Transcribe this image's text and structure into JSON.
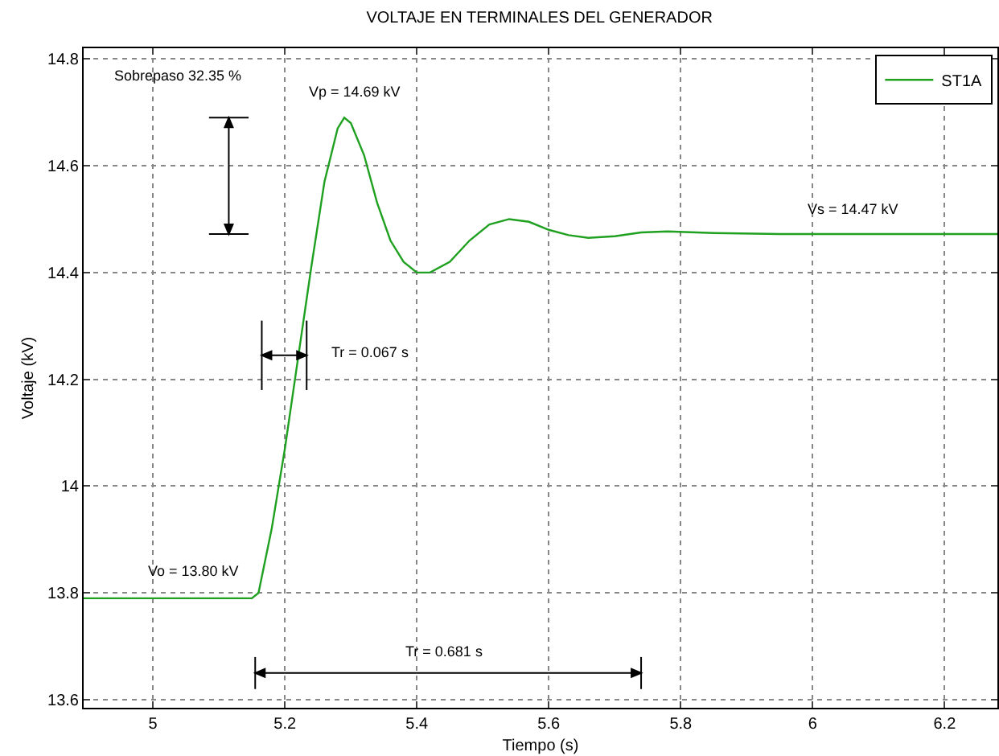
{
  "chart_data": {
    "type": "line",
    "title": "VOLTAJE EN TERMINALES DEL GENERADOR",
    "xlabel": "Tiempo (s)",
    "ylabel": "Voltaje (kV)",
    "xlim": [
      4.895,
      6.28
    ],
    "xticks": [
      5,
      5.2,
      5.4,
      5.6,
      5.8,
      6,
      6.2
    ],
    "ylim": [
      13.585,
      14.82
    ],
    "yticks": [
      13.6,
      13.8,
      14,
      14.2,
      14.4,
      14.6,
      14.8
    ],
    "grid": true,
    "legend": "top right",
    "marker": "none",
    "line_style": "solid",
    "series": [
      {
        "name": "ST1A",
        "color": "#20a020",
        "x": [
          4.895,
          5.15,
          5.16,
          5.18,
          5.2,
          5.22,
          5.24,
          5.26,
          5.28,
          5.29,
          5.3,
          5.32,
          5.34,
          5.36,
          5.38,
          5.4,
          5.42,
          5.45,
          5.48,
          5.51,
          5.54,
          5.57,
          5.6,
          5.63,
          5.66,
          5.7,
          5.74,
          5.78,
          5.85,
          5.95,
          6.1,
          6.28
        ],
        "values": [
          13.79,
          13.79,
          13.8,
          13.92,
          14.07,
          14.24,
          14.41,
          14.57,
          14.67,
          14.69,
          14.68,
          14.62,
          14.53,
          14.46,
          14.42,
          14.4,
          14.4,
          14.42,
          14.46,
          14.49,
          14.5,
          14.495,
          14.48,
          14.47,
          14.465,
          14.468,
          14.475,
          14.477,
          14.474,
          14.472,
          14.472,
          14.472
        ]
      }
    ],
    "annotations": [
      "Sobrepaso 32.35 %",
      "Vp = 14.69 kV",
      "Vs = 14.47 kV",
      "Tr = 0.067 s",
      "Vo = 13.80 kV",
      "Tr = 0.681 s"
    ]
  }
}
